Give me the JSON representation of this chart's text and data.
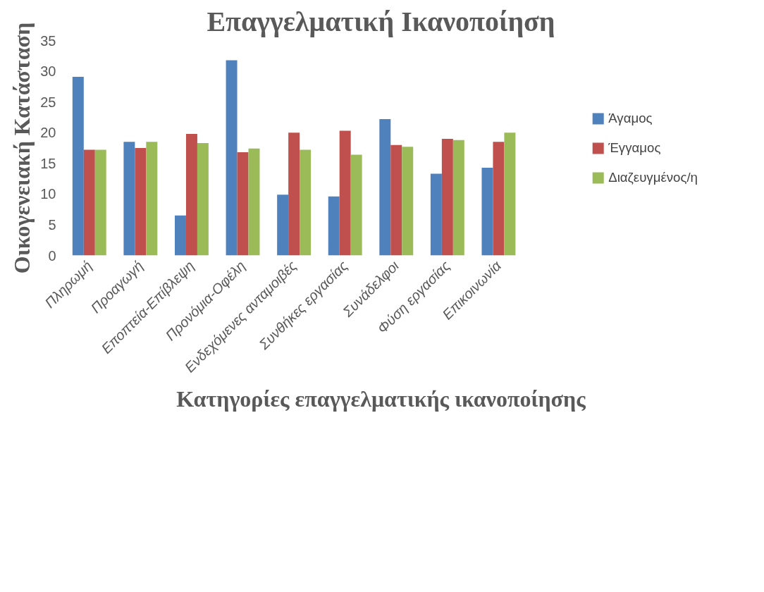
{
  "chart_data": {
    "type": "bar",
    "title": "Επαγγελματική Ικανοποίηση",
    "xlabel": "Κατηγορίες επαγγελματικής ικανοποίησης",
    "ylabel": "Οικογενειακή Κατάσταση",
    "categories": [
      "Πληρωμή",
      "Προαγωγή",
      "Εποπτεία-Επίβλεψη",
      "Προνόμια-Οφέλη",
      "Ενδεχόμενες ανταμοιβές",
      "Συνθήκες εργασίας",
      "Συνάδελφοι",
      "Φύση εργασίας",
      "Επικοινωνία"
    ],
    "series": [
      {
        "name": "Άγαμος",
        "color": "#4f81bd",
        "values": [
          29.1,
          18.5,
          6.5,
          31.8,
          9.9,
          9.6,
          22.2,
          13.3,
          14.3
        ]
      },
      {
        "name": "Έγγαμος",
        "color": "#c0504d",
        "values": [
          17.2,
          17.5,
          19.8,
          16.8,
          20.0,
          20.3,
          18.0,
          19.0,
          18.5
        ]
      },
      {
        "name": "Διαζευγμένος/η",
        "color": "#9bbb59",
        "values": [
          17.2,
          18.5,
          18.3,
          17.4,
          17.2,
          16.4,
          17.7,
          18.8,
          20.0
        ]
      }
    ],
    "ylim": [
      0,
      35
    ],
    "yticks": [
      0,
      5,
      10,
      15,
      20,
      25,
      30,
      35
    ],
    "grid": false,
    "legend": "right"
  }
}
